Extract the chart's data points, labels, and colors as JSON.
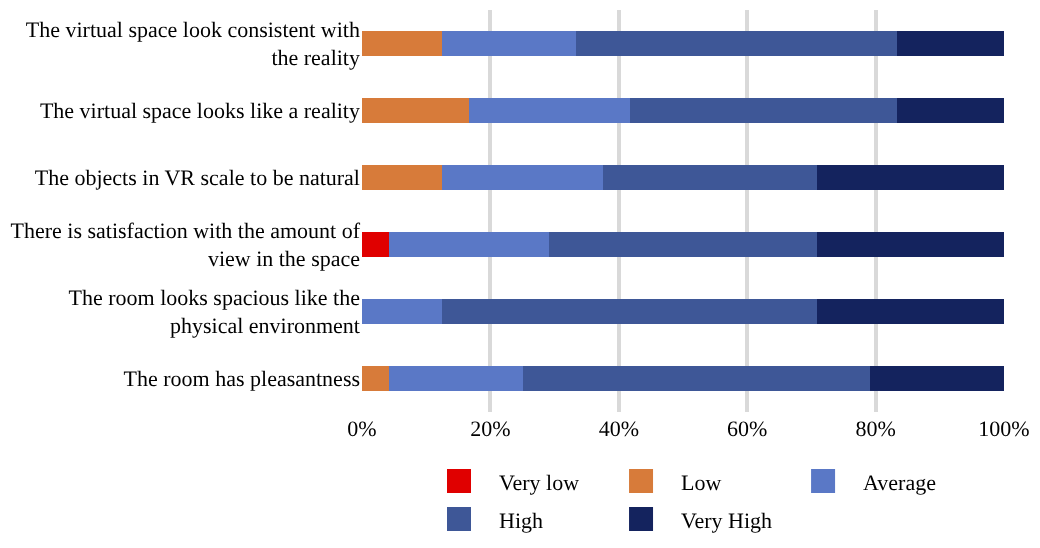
{
  "chart_data": {
    "type": "bar",
    "orientation": "horizontal",
    "stacked": true,
    "categories": [
      "The virtual space look consistent with the reality",
      "The virtual space looks like a reality",
      "The objects in VR scale to be natural",
      "There is satisfaction with the amount of view in the space",
      "The room looks spacious like the physical environment",
      "The room has pleasantness"
    ],
    "series": [
      {
        "name": "Very low",
        "color": "#e00000",
        "values": [
          0,
          0,
          0,
          4.2,
          0,
          0
        ]
      },
      {
        "name": "Low",
        "color": "#d77b3a",
        "values": [
          12.5,
          16.7,
          12.5,
          0,
          0,
          4.2
        ]
      },
      {
        "name": "Average",
        "color": "#5a78c6",
        "values": [
          20.8,
          25,
          25,
          25,
          12.5,
          20.8
        ]
      },
      {
        "name": "High",
        "color": "#3e5797",
        "values": [
          50,
          41.7,
          33.3,
          41.7,
          58.3,
          54.2
        ]
      },
      {
        "name": "Very High",
        "color": "#14235e",
        "values": [
          16.7,
          16.7,
          29.2,
          29.2,
          29.2,
          20.8
        ]
      }
    ],
    "xlim": [
      0,
      100
    ],
    "xticks": [
      {
        "value": 0,
        "label": "0%"
      },
      {
        "value": 20,
        "label": "20%"
      },
      {
        "value": 40,
        "label": "40%"
      },
      {
        "value": 60,
        "label": "60%"
      },
      {
        "value": 80,
        "label": "80%"
      },
      {
        "value": 100,
        "label": "100%"
      }
    ],
    "grid": "x",
    "legend": "bottom"
  }
}
